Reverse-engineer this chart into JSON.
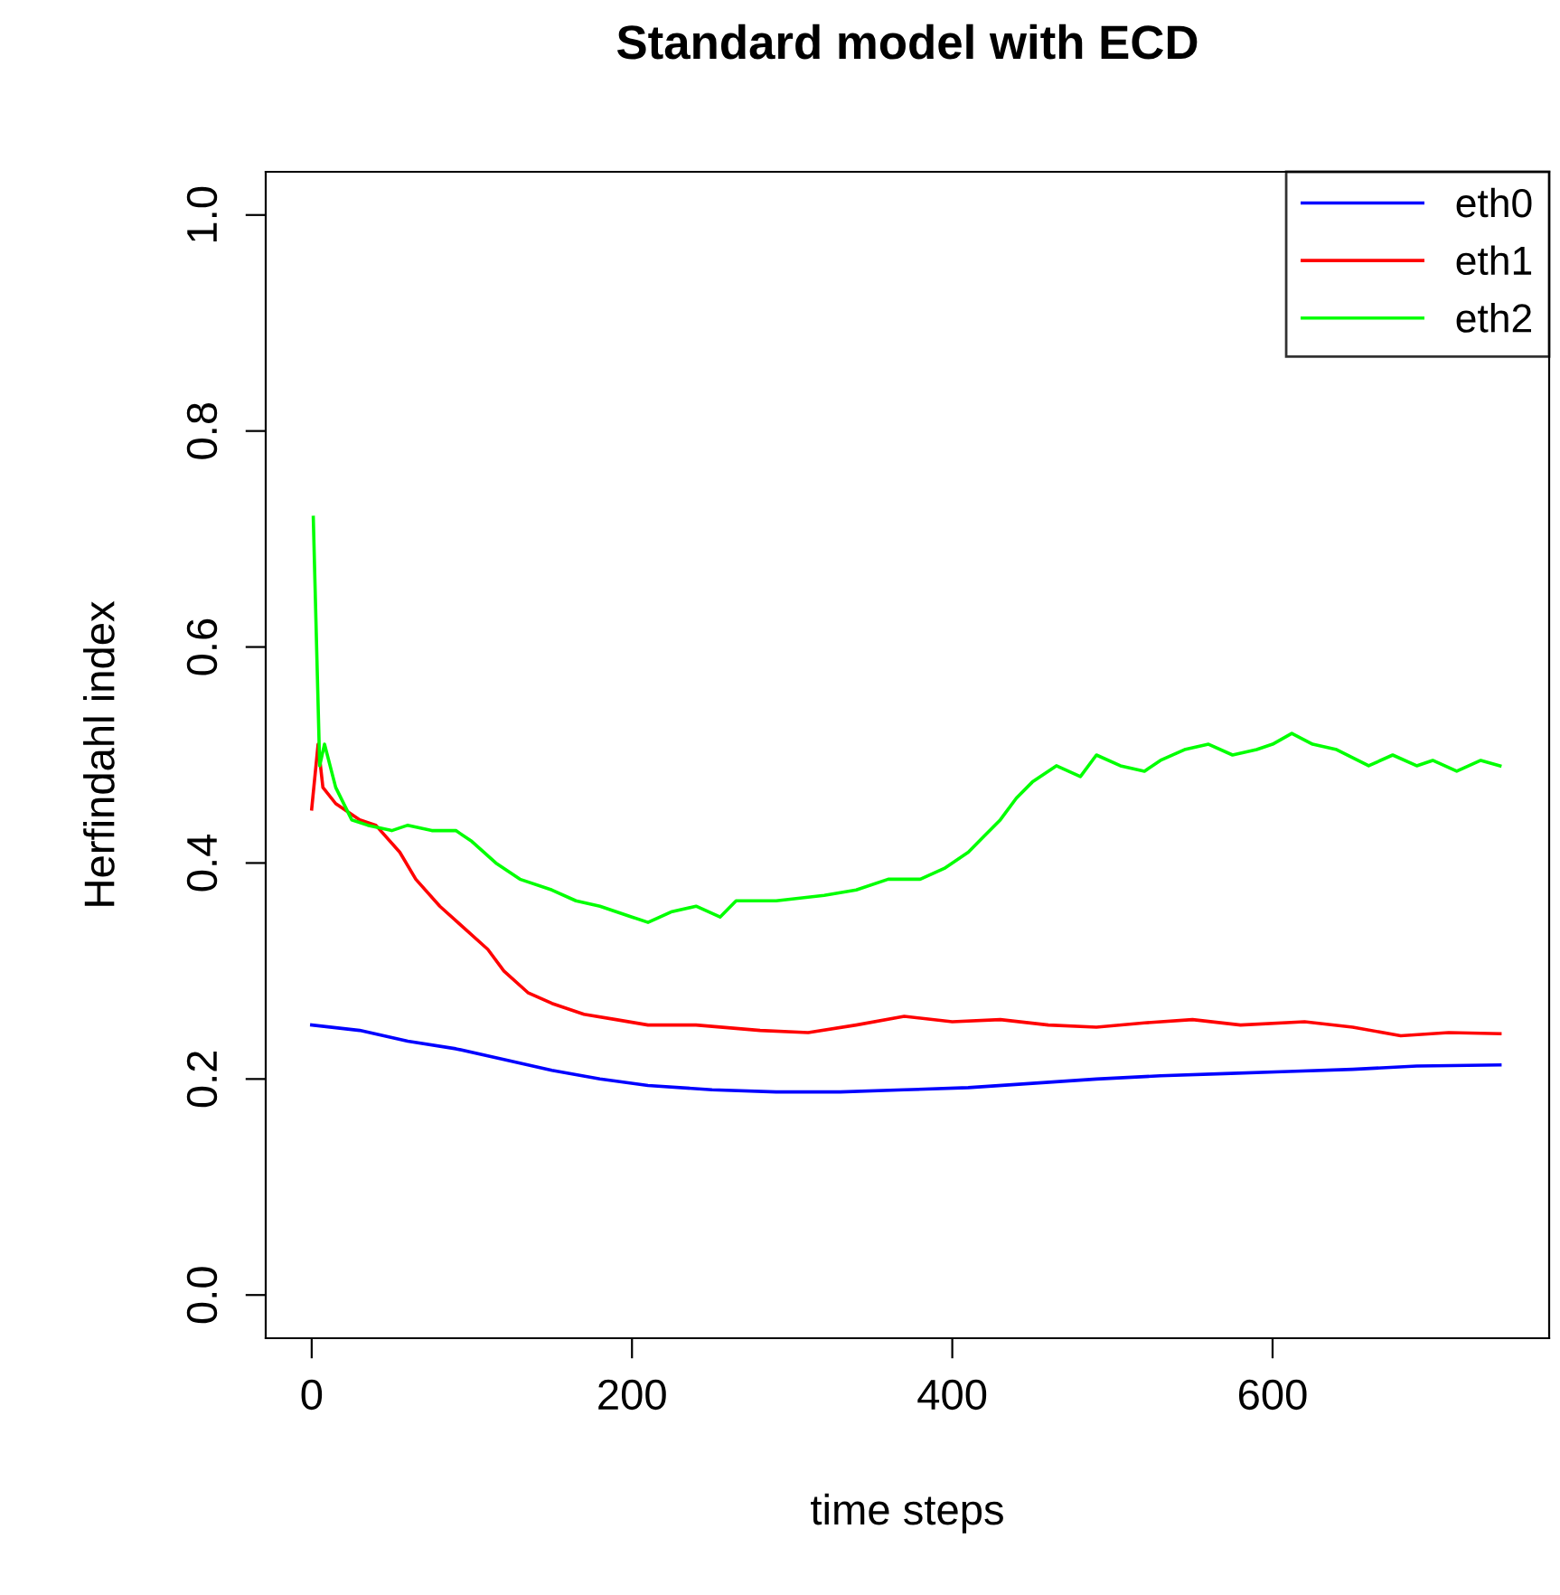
{
  "chart_data": {
    "type": "line",
    "title": "Standard model with ECD",
    "xlabel": "time steps",
    "ylabel": "Herfindahl index",
    "xlim": [
      -28.7,
      772.7
    ],
    "ylim": [
      -0.04,
      1.04
    ],
    "xticks": [
      0,
      200,
      400,
      600
    ],
    "yticks": [
      {
        "value": 0,
        "label": "0.0"
      },
      {
        "value": 0.2,
        "label": "0.2"
      },
      {
        "value": 0.4,
        "label": "0.4"
      },
      {
        "value": 0.6,
        "label": "0.6"
      },
      {
        "value": 0.8,
        "label": "0.8"
      },
      {
        "value": 1,
        "label": "1.0"
      }
    ],
    "grid": false,
    "legend": "top right",
    "line_style": "solid",
    "marker": "none",
    "series": [
      {
        "name": "eth0",
        "color": "#0000ff",
        "x": [
          0,
          30,
          60,
          90,
          120,
          150,
          180,
          210,
          250,
          290,
          330,
          370,
          410,
          450,
          490,
          530,
          570,
          610,
          650,
          690,
          742
        ],
        "values": [
          0.25,
          0.245,
          0.235,
          0.228,
          0.218,
          0.208,
          0.2,
          0.194,
          0.19,
          0.188,
          0.188,
          0.19,
          0.192,
          0.196,
          0.2,
          0.203,
          0.205,
          0.207,
          0.209,
          0.212,
          0.213
        ]
      },
      {
        "name": "eth1",
        "color": "#ff0000",
        "x": [
          0,
          4,
          7,
          15,
          30,
          40,
          55,
          65,
          80,
          95,
          110,
          120,
          135,
          150,
          170,
          190,
          210,
          240,
          280,
          310,
          340,
          370,
          400,
          430,
          460,
          490,
          520,
          550,
          580,
          620,
          650,
          680,
          710,
          742
        ],
        "values": [
          0.45,
          0.51,
          0.47,
          0.455,
          0.44,
          0.435,
          0.41,
          0.385,
          0.36,
          0.34,
          0.32,
          0.3,
          0.28,
          0.27,
          0.26,
          0.255,
          0.25,
          0.25,
          0.245,
          0.243,
          0.25,
          0.258,
          0.253,
          0.255,
          0.25,
          0.248,
          0.252,
          0.255,
          0.25,
          0.253,
          0.248,
          0.24,
          0.243,
          0.242
        ]
      },
      {
        "name": "eth2",
        "color": "#00ff00",
        "x": [
          1,
          5,
          8,
          15,
          25,
          35,
          50,
          60,
          75,
          90,
          100,
          115,
          130,
          150,
          165,
          180,
          200,
          210,
          225,
          240,
          255,
          265,
          290,
          320,
          340,
          360,
          380,
          395,
          410,
          420,
          430,
          440,
          450,
          465,
          480,
          490,
          505,
          520,
          530,
          545,
          560,
          575,
          590,
          600,
          612,
          625,
          640,
          660,
          675,
          690,
          700,
          715,
          730,
          742
        ],
        "values": [
          0.72,
          0.49,
          0.51,
          0.47,
          0.44,
          0.435,
          0.43,
          0.435,
          0.43,
          0.43,
          0.42,
          0.4,
          0.385,
          0.375,
          0.365,
          0.36,
          0.35,
          0.345,
          0.355,
          0.36,
          0.35,
          0.365,
          0.365,
          0.37,
          0.375,
          0.385,
          0.385,
          0.395,
          0.41,
          0.425,
          0.44,
          0.46,
          0.475,
          0.49,
          0.48,
          0.5,
          0.49,
          0.485,
          0.495,
          0.505,
          0.51,
          0.5,
          0.505,
          0.51,
          0.52,
          0.51,
          0.505,
          0.49,
          0.5,
          0.49,
          0.495,
          0.485,
          0.495,
          0.49
        ]
      }
    ]
  }
}
